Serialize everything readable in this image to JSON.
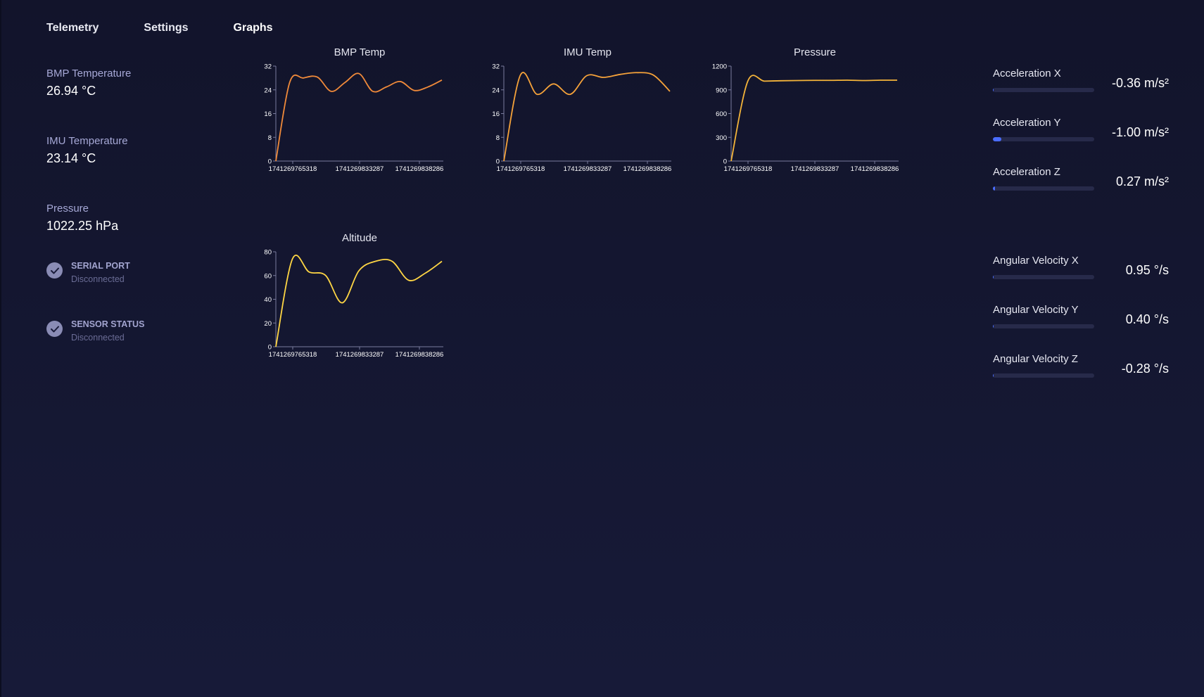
{
  "tabs": [
    "Telemetry",
    "Settings",
    "Graphs"
  ],
  "active_tab": "Graphs",
  "left": {
    "bmp_temp": {
      "label": "BMP Temperature",
      "value": "26.94 °C"
    },
    "imu_temp": {
      "label": "IMU Temperature",
      "value": "23.14 °C"
    },
    "pressure": {
      "label": "Pressure",
      "value": "1022.25 hPa"
    },
    "serial": {
      "label": "SERIAL PORT",
      "value": "Disconnected"
    },
    "sensor": {
      "label": "SENSOR STATUS",
      "value": "Disconnected"
    }
  },
  "imu": {
    "acc_x": {
      "label": "Acceleration X",
      "value": "-0.36 m/s²",
      "fill": 0.01
    },
    "acc_y": {
      "label": "Acceleration Y",
      "value": "-1.00 m/s²",
      "fill": 0.08
    },
    "acc_z": {
      "label": "Acceleration Z",
      "value": "0.27 m/s²",
      "fill": 0.02
    },
    "ang_x": {
      "label": "Angular Velocity X",
      "value": "0.95 °/s",
      "fill": 0.01
    },
    "ang_y": {
      "label": "Angular Velocity Y",
      "value": "0.40 °/s",
      "fill": 0.01
    },
    "ang_z": {
      "label": "Angular Velocity Z",
      "value": "-0.28 °/s",
      "fill": 0.01
    }
  },
  "colors": {
    "bar_fill": "#4a6dff",
    "orange": "#f08a3a",
    "orange2": "#f5a23a",
    "amber": "#f4b43a",
    "yellow": "#ffd644"
  },
  "chart_data": [
    {
      "type": "line",
      "title": "BMP Temp",
      "x_ticks": [
        "1741269765318",
        "1741269833287",
        "1741269838286"
      ],
      "y_ticks": [
        0,
        8,
        16,
        24,
        32
      ],
      "ylim": [
        0,
        32
      ],
      "color": "#f08a3a",
      "series": [
        {
          "values": [
            0,
            26.5,
            28,
            28.3,
            23.5,
            26.5,
            29.5,
            23.5,
            25,
            26.8,
            23.8,
            25,
            27.3
          ]
        }
      ]
    },
    {
      "type": "line",
      "title": "IMU Temp",
      "x_ticks": [
        "1741269765318",
        "1741269833287",
        "1741269838286"
      ],
      "y_ticks": [
        0,
        8,
        16,
        24,
        32
      ],
      "ylim": [
        0,
        32
      ],
      "color": "#f5a23a",
      "series": [
        {
          "values": [
            0,
            29,
            22.5,
            26,
            22.5,
            28.8,
            28.2,
            29.2,
            29.8,
            29,
            23.5
          ]
        }
      ]
    },
    {
      "type": "line",
      "title": "Pressure",
      "x_ticks": [
        "1741269765318",
        "1741269833287",
        "1741269838286"
      ],
      "y_ticks": [
        0,
        300,
        600,
        900,
        1200
      ],
      "ylim": [
        0,
        1200
      ],
      "color": "#f4b43a",
      "series": [
        {
          "values": [
            0,
            1008,
            1010,
            1015,
            1018,
            1020,
            1020,
            1022,
            1018,
            1022,
            1022
          ]
        }
      ]
    },
    {
      "type": "line",
      "title": "Altitude",
      "x_ticks": [
        "1741269765318",
        "1741269833287",
        "1741269838286"
      ],
      "y_ticks": [
        0,
        20,
        40,
        60,
        80
      ],
      "ylim": [
        0,
        80
      ],
      "color": "#ffd644",
      "series": [
        {
          "values": [
            0,
            74,
            63,
            60,
            37,
            64,
            72,
            72,
            56,
            62,
            72
          ]
        }
      ]
    }
  ]
}
